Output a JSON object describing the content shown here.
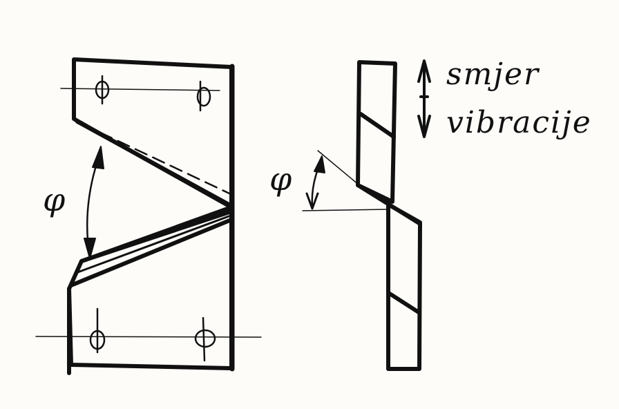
{
  "labels": {
    "phi_left": "φ",
    "phi_right": "φ",
    "line1": "smjer",
    "line2": "vibracije"
  },
  "colors": {
    "ink": "#111111",
    "paper": "#fdfcf9"
  }
}
